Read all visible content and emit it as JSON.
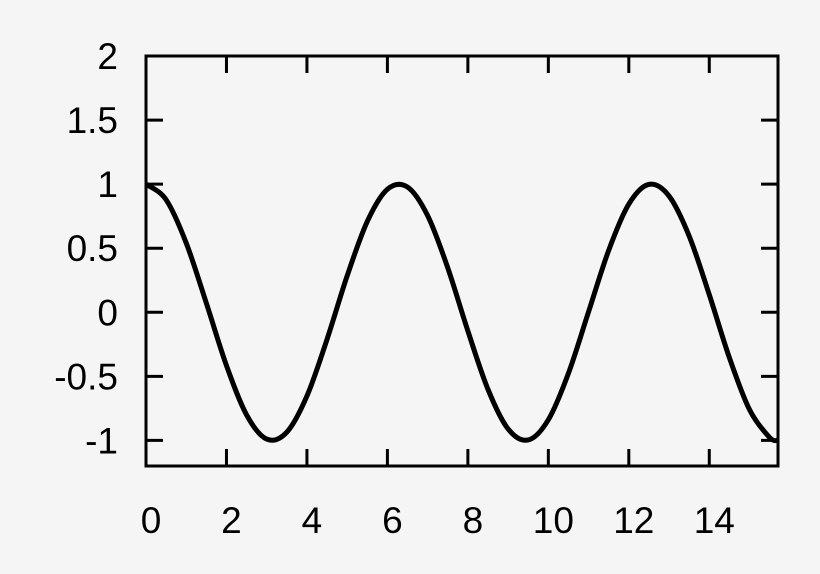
{
  "chart_data": {
    "type": "line",
    "title": "",
    "xlabel": "",
    "ylabel": "",
    "xlim": [
      0,
      15.708
    ],
    "ylim": [
      -1.2,
      2
    ],
    "xticks": [
      0,
      2,
      4,
      6,
      8,
      10,
      12,
      14
    ],
    "xtick_labels": [
      "0",
      "2",
      "4",
      "6",
      "8",
      "10",
      "12",
      "14"
    ],
    "yticks": [
      -1,
      -0.5,
      0,
      0.5,
      1,
      1.5,
      2
    ],
    "ytick_labels": [
      "-1",
      "-0.5",
      "0",
      "0.5",
      "1",
      "1.5",
      "2"
    ],
    "grid": false,
    "line_color": "#000000",
    "background_color": "#f5f5f5",
    "series": [
      {
        "x": [
          0,
          0.5,
          1,
          1.5,
          2,
          2.5,
          3,
          3.5,
          4,
          4.5,
          5,
          5.5,
          6,
          6.5,
          7,
          7.5,
          8,
          8.5,
          9,
          9.5,
          10,
          10.5,
          11,
          11.5,
          12,
          12.5,
          13,
          13.5,
          14,
          14.5,
          15,
          15.5,
          15.708
        ],
        "y": [
          1,
          0.878,
          0.54,
          0.071,
          -0.416,
          -0.801,
          -0.99,
          -0.936,
          -0.654,
          -0.211,
          0.284,
          0.709,
          0.96,
          0.977,
          0.754,
          0.347,
          -0.146,
          -0.602,
          -0.911,
          -0.997,
          -0.839,
          -0.476,
          0.004,
          0.483,
          0.844,
          0.998,
          0.907,
          0.595,
          0.137,
          -0.355,
          -0.76,
          -0.978,
          -1
        ]
      }
    ]
  }
}
